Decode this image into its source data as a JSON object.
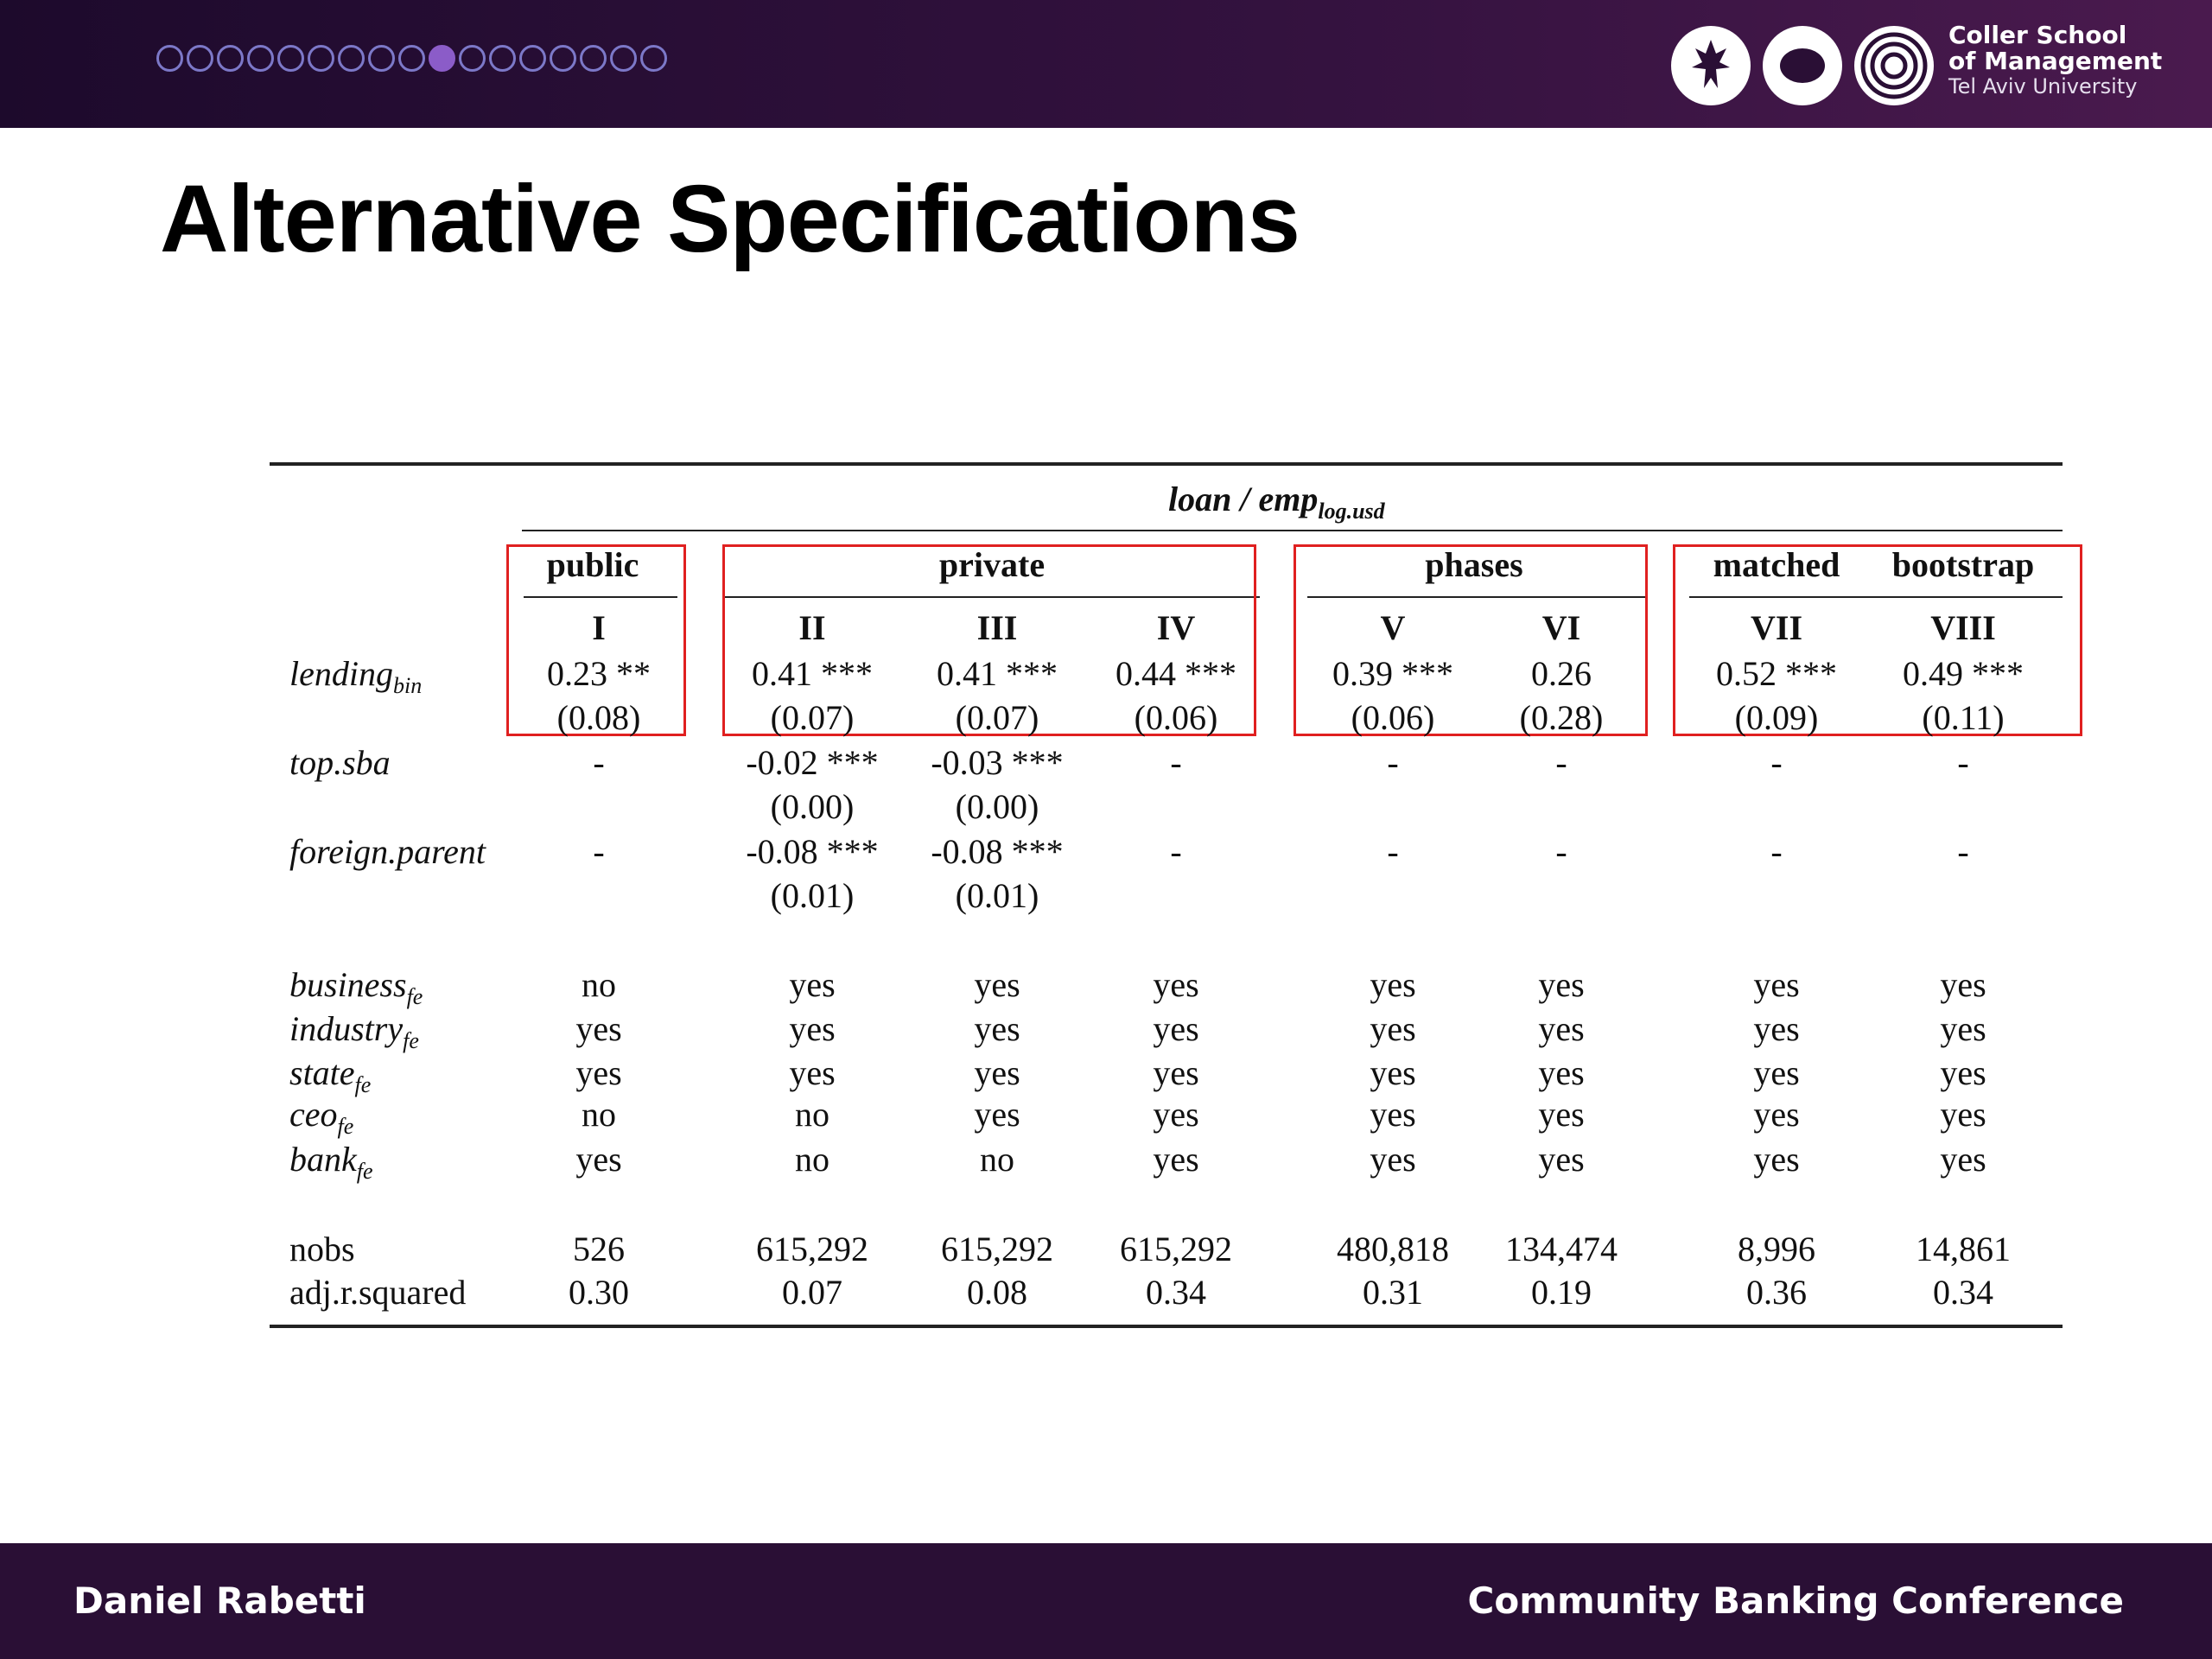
{
  "header": {
    "progress": {
      "total": 17,
      "current": 10
    },
    "org": {
      "line1": "Coller School",
      "line2": "of Management",
      "line3": "Tel Aviv University"
    }
  },
  "slide": {
    "title": "Alternative Specifications"
  },
  "table": {
    "dependent": {
      "main": "loan / emp",
      "sub": "log.usd"
    },
    "groups": [
      "public",
      "private",
      "phases",
      "matched",
      "bootstrap"
    ],
    "columns": [
      "I",
      "II",
      "III",
      "IV",
      "V",
      "VI",
      "VII",
      "VIII"
    ],
    "rows": [
      {
        "label": "lending",
        "sub": "bin",
        "values": [
          "0.23 **",
          "0.41 ***",
          "0.41 ***",
          "0.44 ***",
          "0.39 ***",
          "0.26",
          "0.52 ***",
          "0.49 ***"
        ],
        "se": [
          "(0.08)",
          "(0.07)",
          "(0.07)",
          "(0.06)",
          "(0.06)",
          "(0.28)",
          "(0.09)",
          "(0.11)"
        ]
      },
      {
        "label": "top.sba",
        "sub": "",
        "values": [
          "-",
          "-0.02 ***",
          "-0.03 ***",
          "-",
          "-",
          "-",
          "-",
          "-"
        ],
        "se": [
          "",
          "(0.00)",
          "(0.00)",
          "",
          "",
          "",
          "",
          ""
        ]
      },
      {
        "label": "foreign.parent",
        "sub": "",
        "values": [
          "-",
          "-0.08 ***",
          "-0.08 ***",
          "-",
          "-",
          "-",
          "-",
          "-"
        ],
        "se": [
          "",
          "(0.01)",
          "(0.01)",
          "",
          "",
          "",
          "",
          ""
        ]
      }
    ],
    "fixed_effects": [
      {
        "label": "business",
        "sub": "fe",
        "values": [
          "no",
          "yes",
          "yes",
          "yes",
          "yes",
          "yes",
          "yes",
          "yes"
        ]
      },
      {
        "label": "industry",
        "sub": "fe",
        "values": [
          "yes",
          "yes",
          "yes",
          "yes",
          "yes",
          "yes",
          "yes",
          "yes"
        ]
      },
      {
        "label": "state",
        "sub": "fe",
        "values": [
          "yes",
          "yes",
          "yes",
          "yes",
          "yes",
          "yes",
          "yes",
          "yes"
        ]
      },
      {
        "label": "ceo",
        "sub": "fe",
        "values": [
          "no",
          "no",
          "yes",
          "yes",
          "yes",
          "yes",
          "yes",
          "yes"
        ]
      },
      {
        "label": "bank",
        "sub": "fe",
        "values": [
          "yes",
          "no",
          "no",
          "yes",
          "yes",
          "yes",
          "yes",
          "yes"
        ]
      }
    ],
    "stats": [
      {
        "label": "nobs",
        "values": [
          "526",
          "615,292",
          "615,292",
          "615,292",
          "480,818",
          "134,474",
          "8,996",
          "14,861"
        ]
      },
      {
        "label": "adj.r.squared",
        "values": [
          "0.30",
          "0.07",
          "0.08",
          "0.34",
          "0.31",
          "0.19",
          "0.36",
          "0.34"
        ]
      }
    ]
  },
  "footer": {
    "left": "Daniel Rabetti",
    "right": "Community Banking Conference"
  }
}
